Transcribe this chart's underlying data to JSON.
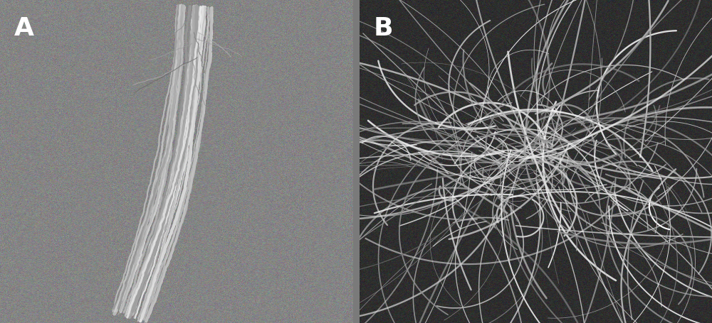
{
  "figure_width": 10.0,
  "figure_height": 4.56,
  "dpi": 100,
  "label_A": "A",
  "label_B": "B",
  "label_fontsize": 26,
  "label_color": "white",
  "label_fontweight": "bold",
  "panel_A_bg_mean": 0.52,
  "panel_A_bg_std": 0.04,
  "panel_B_bg_mean": 0.18,
  "panel_B_bg_std": 0.03,
  "figure_facecolor": "#7a7a7a",
  "gap_color": "#7a7a7a"
}
